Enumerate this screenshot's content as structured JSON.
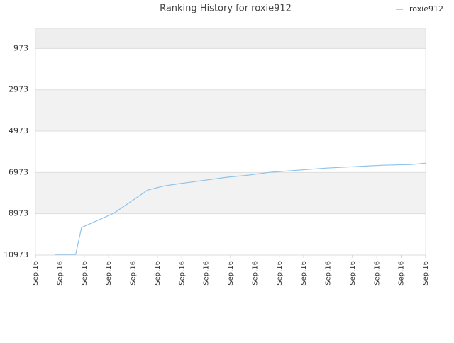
{
  "chart_data": {
    "type": "line",
    "title": "Ranking History for roxie912",
    "series": [
      {
        "name": "roxie912",
        "color": "#8ec3ea",
        "x": [
          0.81,
          1.65,
          1.89,
          3.2,
          3.93,
          4.6,
          5.3,
          6.11,
          6.98,
          7.85,
          8.73,
          9.6,
          10.76,
          11.93,
          13.09,
          14.25,
          15.42,
          16
        ],
        "values": [
          10940,
          10940,
          9638,
          8953,
          8371,
          7823,
          7618,
          7481,
          7344,
          7206,
          7104,
          6967,
          6864,
          6761,
          6693,
          6624,
          6590,
          6521
        ]
      }
    ],
    "xlim": [
      0,
      16
    ],
    "xticks": [
      {
        "value": 0,
        "label": "Sep.16"
      },
      {
        "value": 1,
        "label": "Sep.16"
      },
      {
        "value": 2,
        "label": "Sep.16"
      },
      {
        "value": 3,
        "label": "Sep.16"
      },
      {
        "value": 4,
        "label": "Sep.16"
      },
      {
        "value": 5,
        "label": "Sep.16"
      },
      {
        "value": 6,
        "label": "Sep.16"
      },
      {
        "value": 7,
        "label": "Sep.16"
      },
      {
        "value": 8,
        "label": "Sep.16"
      },
      {
        "value": 9,
        "label": "Sep.16"
      },
      {
        "value": 10,
        "label": "Sep.16"
      },
      {
        "value": 11,
        "label": "Sep.16"
      },
      {
        "value": 12,
        "label": "Sep.16"
      },
      {
        "value": 13,
        "label": "Sep.16"
      },
      {
        "value": 14,
        "label": "Sep.16"
      },
      {
        "value": 15,
        "label": "Sep.16"
      },
      {
        "value": 16,
        "label": "Sep.16"
      }
    ],
    "ylim": [
      10973,
      0
    ],
    "yticks": [
      973,
      2973,
      4973,
      6973,
      8973,
      10973
    ],
    "grid": true,
    "legend": "top-right"
  }
}
